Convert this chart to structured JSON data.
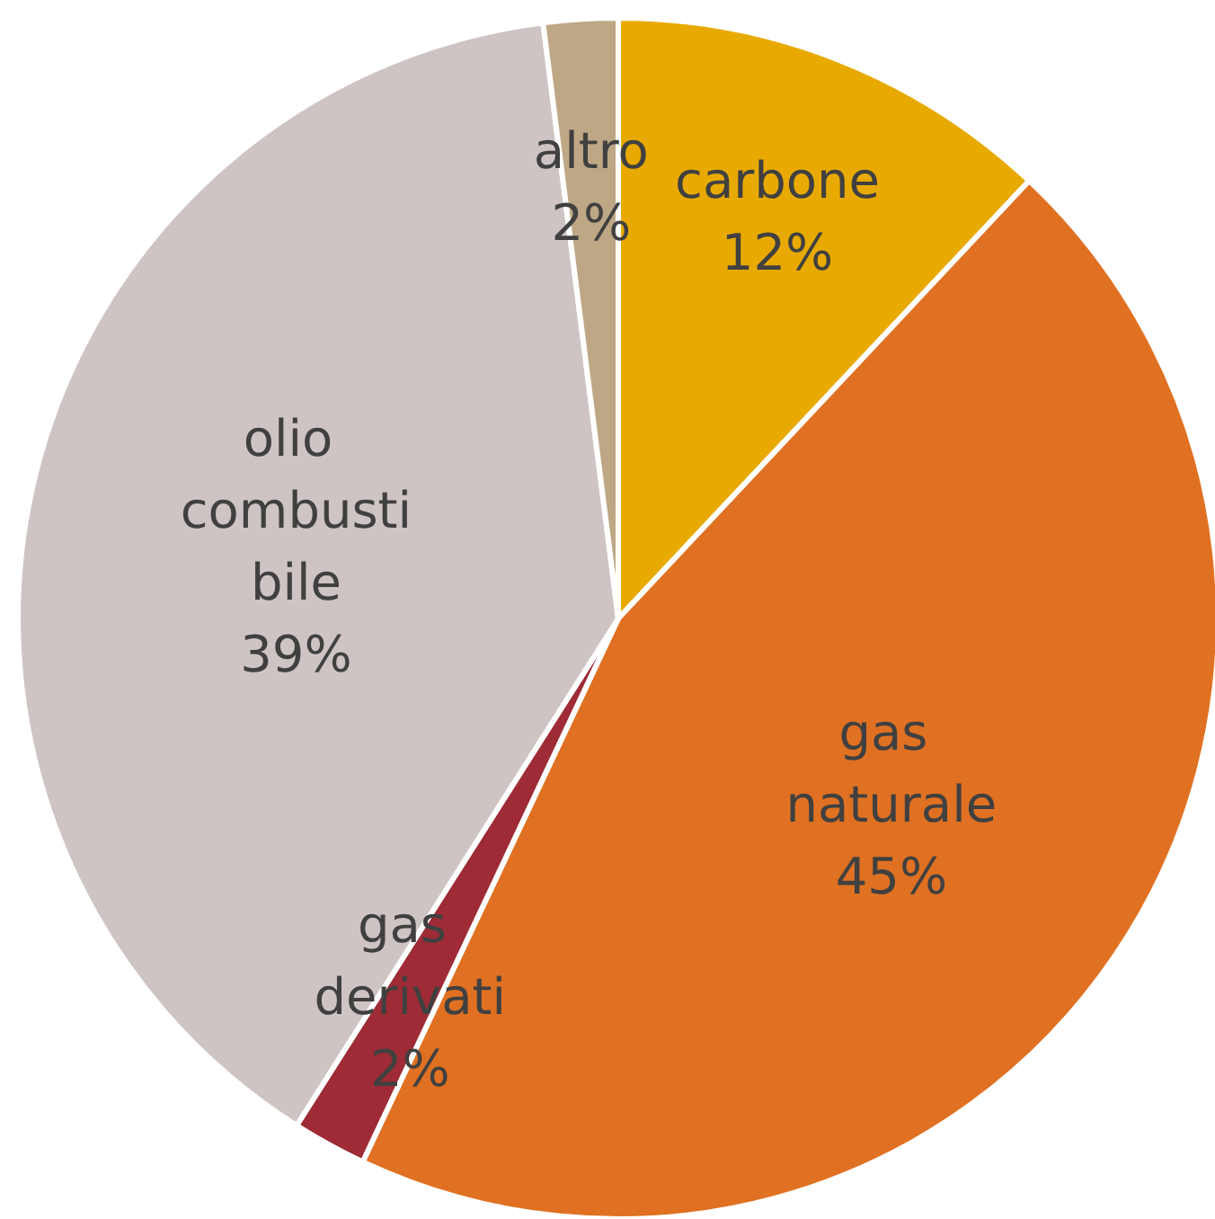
{
  "chart_data": {
    "type": "pie",
    "categories": [
      "carbone",
      "gas naturale",
      "gas derivati",
      "olio combustibile",
      "altro"
    ],
    "values": [
      12,
      45,
      2,
      39,
      2
    ],
    "colors": [
      "#e8aa00",
      "#e07122",
      "#9e2b36",
      "#cfc4c4",
      "#bea785"
    ],
    "value_labels": [
      "12%",
      "45%",
      "2%",
      "39%",
      "2%"
    ],
    "legend": false
  }
}
